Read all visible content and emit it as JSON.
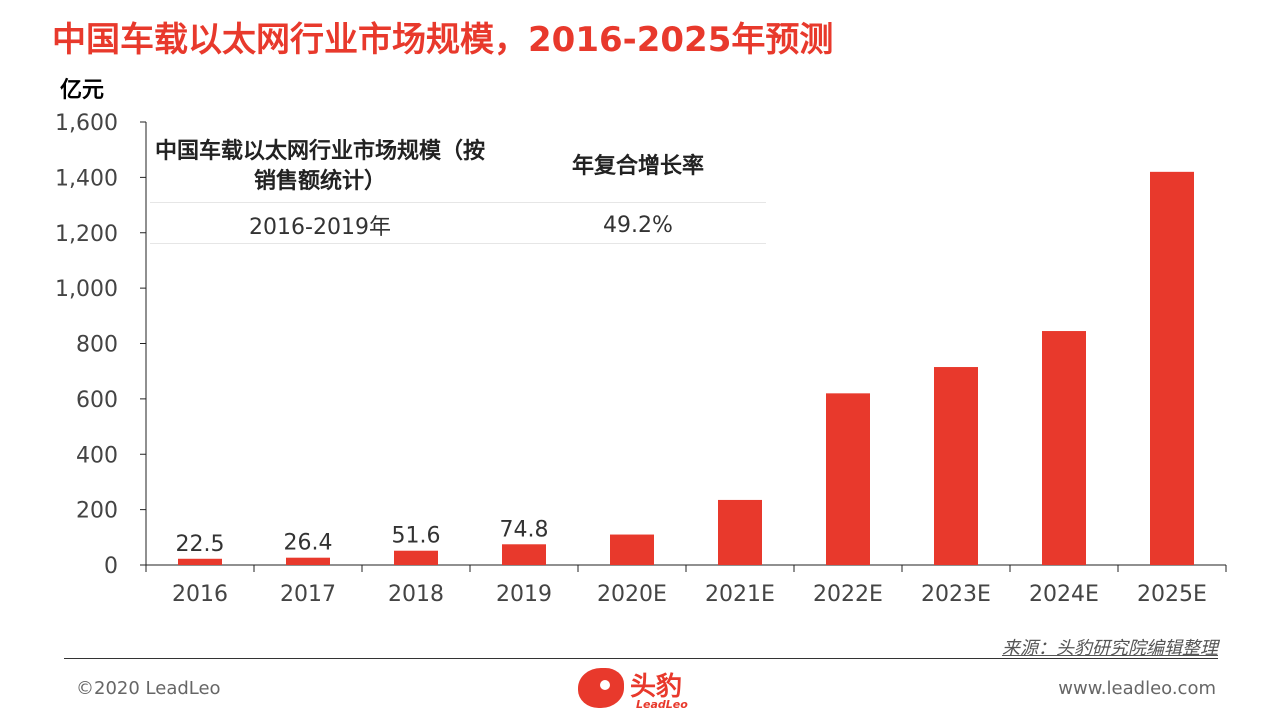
{
  "title": "中国车载以太网行业市场规模，2016-2025年预测",
  "unit": "亿元",
  "table": {
    "header_scale": "中国车载以太网行业市场规模（按销售额统计）",
    "header_cagr": "年复合增长率",
    "period": "2016-2019年",
    "cagr": "49.2%"
  },
  "chart_data": {
    "type": "bar",
    "categories": [
      "2016",
      "2017",
      "2018",
      "2019",
      "2020E",
      "2021E",
      "2022E",
      "2023E",
      "2024E",
      "2025E"
    ],
    "values": [
      22.5,
      26.4,
      51.6,
      74.8,
      110,
      235,
      620,
      715,
      845,
      1420
    ],
    "data_labels": [
      "22.5",
      "26.4",
      "51.6",
      "74.8",
      "",
      "",
      "",
      "",
      "",
      ""
    ],
    "ylim": [
      0,
      1600
    ],
    "yticks": [
      0,
      200,
      400,
      600,
      800,
      1000,
      1200,
      1400,
      1600
    ],
    "ytick_labels": [
      "0",
      "200",
      "400",
      "600",
      "800",
      "1,000",
      "1,200",
      "1,400",
      "1,600"
    ],
    "grid": false,
    "bar_color": "#e8392c"
  },
  "source": "来源：头豹研究院编辑整理",
  "copyright": "©2020 LeadLeo",
  "website": "www.leadleo.com",
  "logo": {
    "text": "头豹",
    "sub": "LeadLeo"
  }
}
